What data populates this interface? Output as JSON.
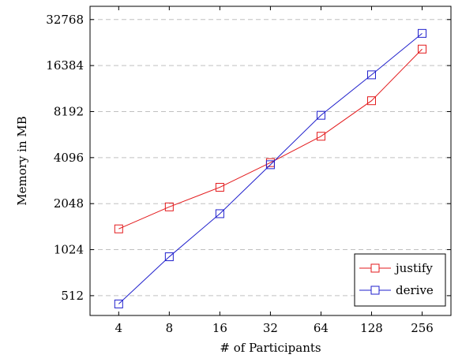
{
  "chart_data": {
    "type": "line",
    "title": "",
    "xlabel": "# of Participants",
    "ylabel": "Memory in MB",
    "x_scale": "log2",
    "y_scale": "log2",
    "x_ticks": [
      "4",
      "8",
      "16",
      "32",
      "64",
      "128",
      "256"
    ],
    "y_ticks": [
      "512",
      "1024",
      "2048",
      "4096",
      "8192",
      "16384",
      "32768"
    ],
    "x": [
      4,
      8,
      16,
      32,
      64,
      128,
      256
    ],
    "ylim": [
      380,
      40000
    ],
    "grid": "horizontal dashed",
    "legend_position": "bottom-right",
    "series": [
      {
        "name": "justify",
        "color": "#e31a1c",
        "marker": "square",
        "values": [
          1400,
          1950,
          2620,
          3800,
          5650,
          9650,
          21000
        ]
      },
      {
        "name": "derive",
        "color": "#1f1fcc",
        "marker": "square",
        "values": [
          452,
          920,
          1760,
          3680,
          7750,
          14250,
          26600
        ]
      }
    ]
  }
}
